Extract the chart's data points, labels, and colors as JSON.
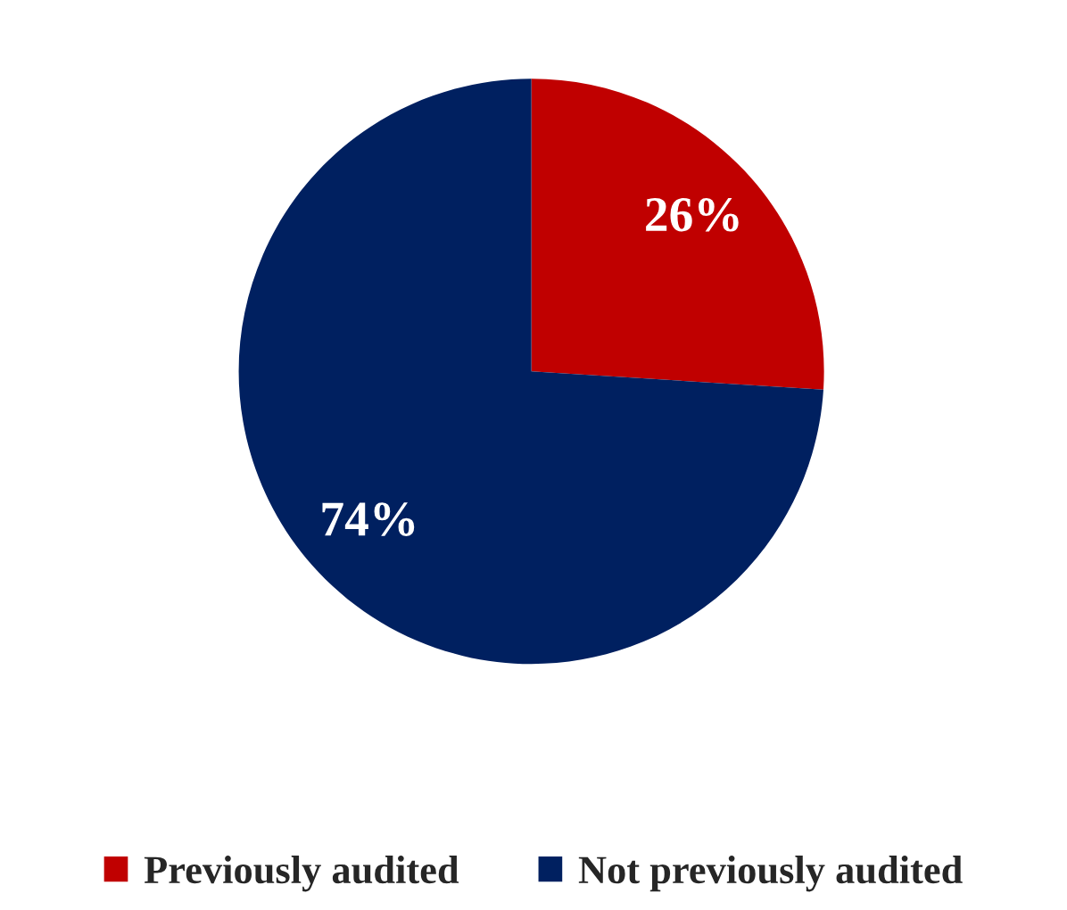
{
  "chart_data": {
    "type": "pie",
    "categories": [
      "Previously audited",
      "Not previously audited"
    ],
    "values": [
      26,
      74
    ],
    "colors": [
      "#c00000",
      "#002060"
    ],
    "value_labels": [
      "26%",
      "74%"
    ],
    "legend": "bottom"
  }
}
